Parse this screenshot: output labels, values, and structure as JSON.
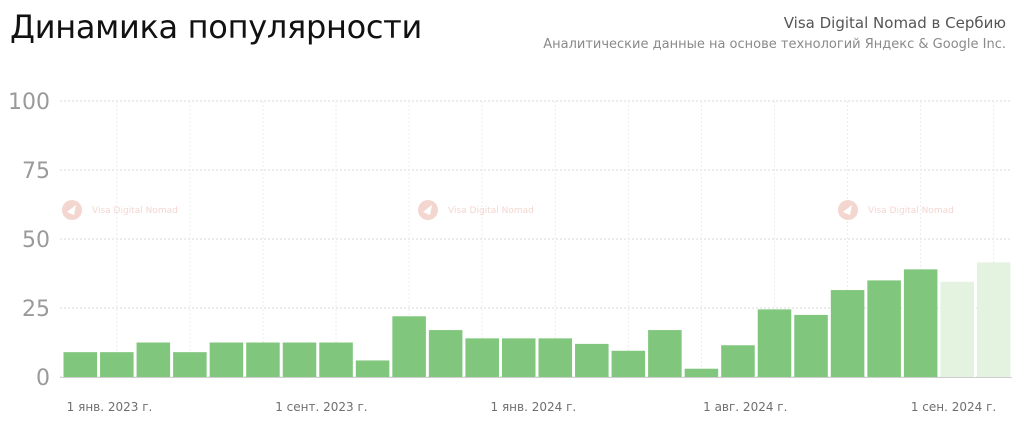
{
  "header": {
    "title": "Динамика популярности",
    "subtitle_main": "Visa Digital Nomad в Сербию",
    "subtitle_sub": "Аналитические данные на основе технологий Яндекс & Google Inc."
  },
  "watermark": {
    "text": "Visa Digital Nomad",
    "icon": "logo-icon"
  },
  "colors": {
    "bar": "#80c67d",
    "bar_forecast": "#e3f3e0",
    "grid": "#d8d8d8",
    "watermark": "#f3d2cc"
  },
  "chart_data": {
    "type": "bar",
    "ylim": [
      0,
      100
    ],
    "yticks": [
      "0",
      "25",
      "50",
      "75",
      "100"
    ],
    "grid": true,
    "values": [
      9,
      9,
      12.5,
      9,
      12.5,
      12.5,
      12.5,
      12.5,
      6,
      22,
      17,
      14,
      14,
      14,
      12,
      9.5,
      17,
      3,
      11.5,
      24.5,
      22.5,
      31.5,
      35,
      39,
      34.5,
      41.5
    ],
    "forecast_from_index": 24,
    "xticks": [
      {
        "label": "1 янв. 2023 г.",
        "index": 1.3
      },
      {
        "label": "1 сент. 2023 г.",
        "index": 7.1
      },
      {
        "label": "1 янв. 2024 г.",
        "index": 12.9
      },
      {
        "label": "1 авг. 2024 г.",
        "index": 18.7
      },
      {
        "label": "1 сен. 2024 г.",
        "index": 24.4
      }
    ]
  }
}
